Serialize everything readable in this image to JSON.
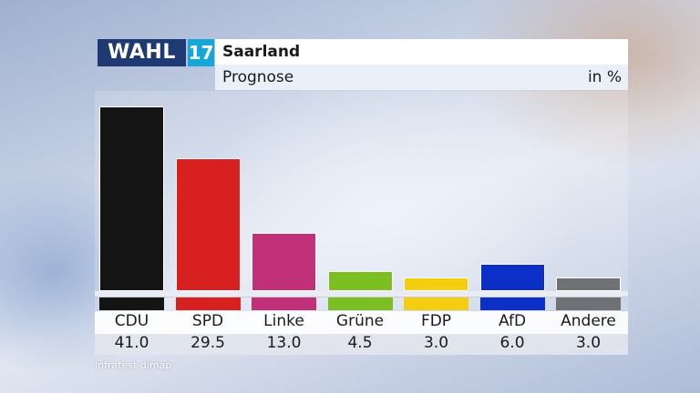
{
  "header": {
    "logo_text": "WAHL",
    "logo_number": "17",
    "title": "Saarland",
    "subtitle": "Prognose",
    "unit": "in %"
  },
  "source": "infratest dimap",
  "colors": {
    "logo_bg": "#1f3a73",
    "logo_number_bg": "#14a7d8"
  },
  "chart_data": {
    "type": "bar",
    "title": "Saarland",
    "subtitle": "Prognose",
    "ylabel": "in %",
    "ylim": [
      0,
      43
    ],
    "grid": false,
    "categories": [
      "CDU",
      "SPD",
      "Linke",
      "Grüne",
      "FDP",
      "AfD",
      "Andere"
    ],
    "values": [
      41.0,
      29.5,
      13.0,
      4.5,
      3.0,
      6.0,
      3.0
    ],
    "value_labels": [
      "41.0",
      "29.5",
      "13.0",
      "4.5",
      "3.0",
      "6.0",
      "3.0"
    ],
    "colors": [
      "#141414",
      "#d92020",
      "#c0317a",
      "#7bbf22",
      "#f5cd10",
      "#0b2fc7",
      "#6f7175"
    ]
  }
}
